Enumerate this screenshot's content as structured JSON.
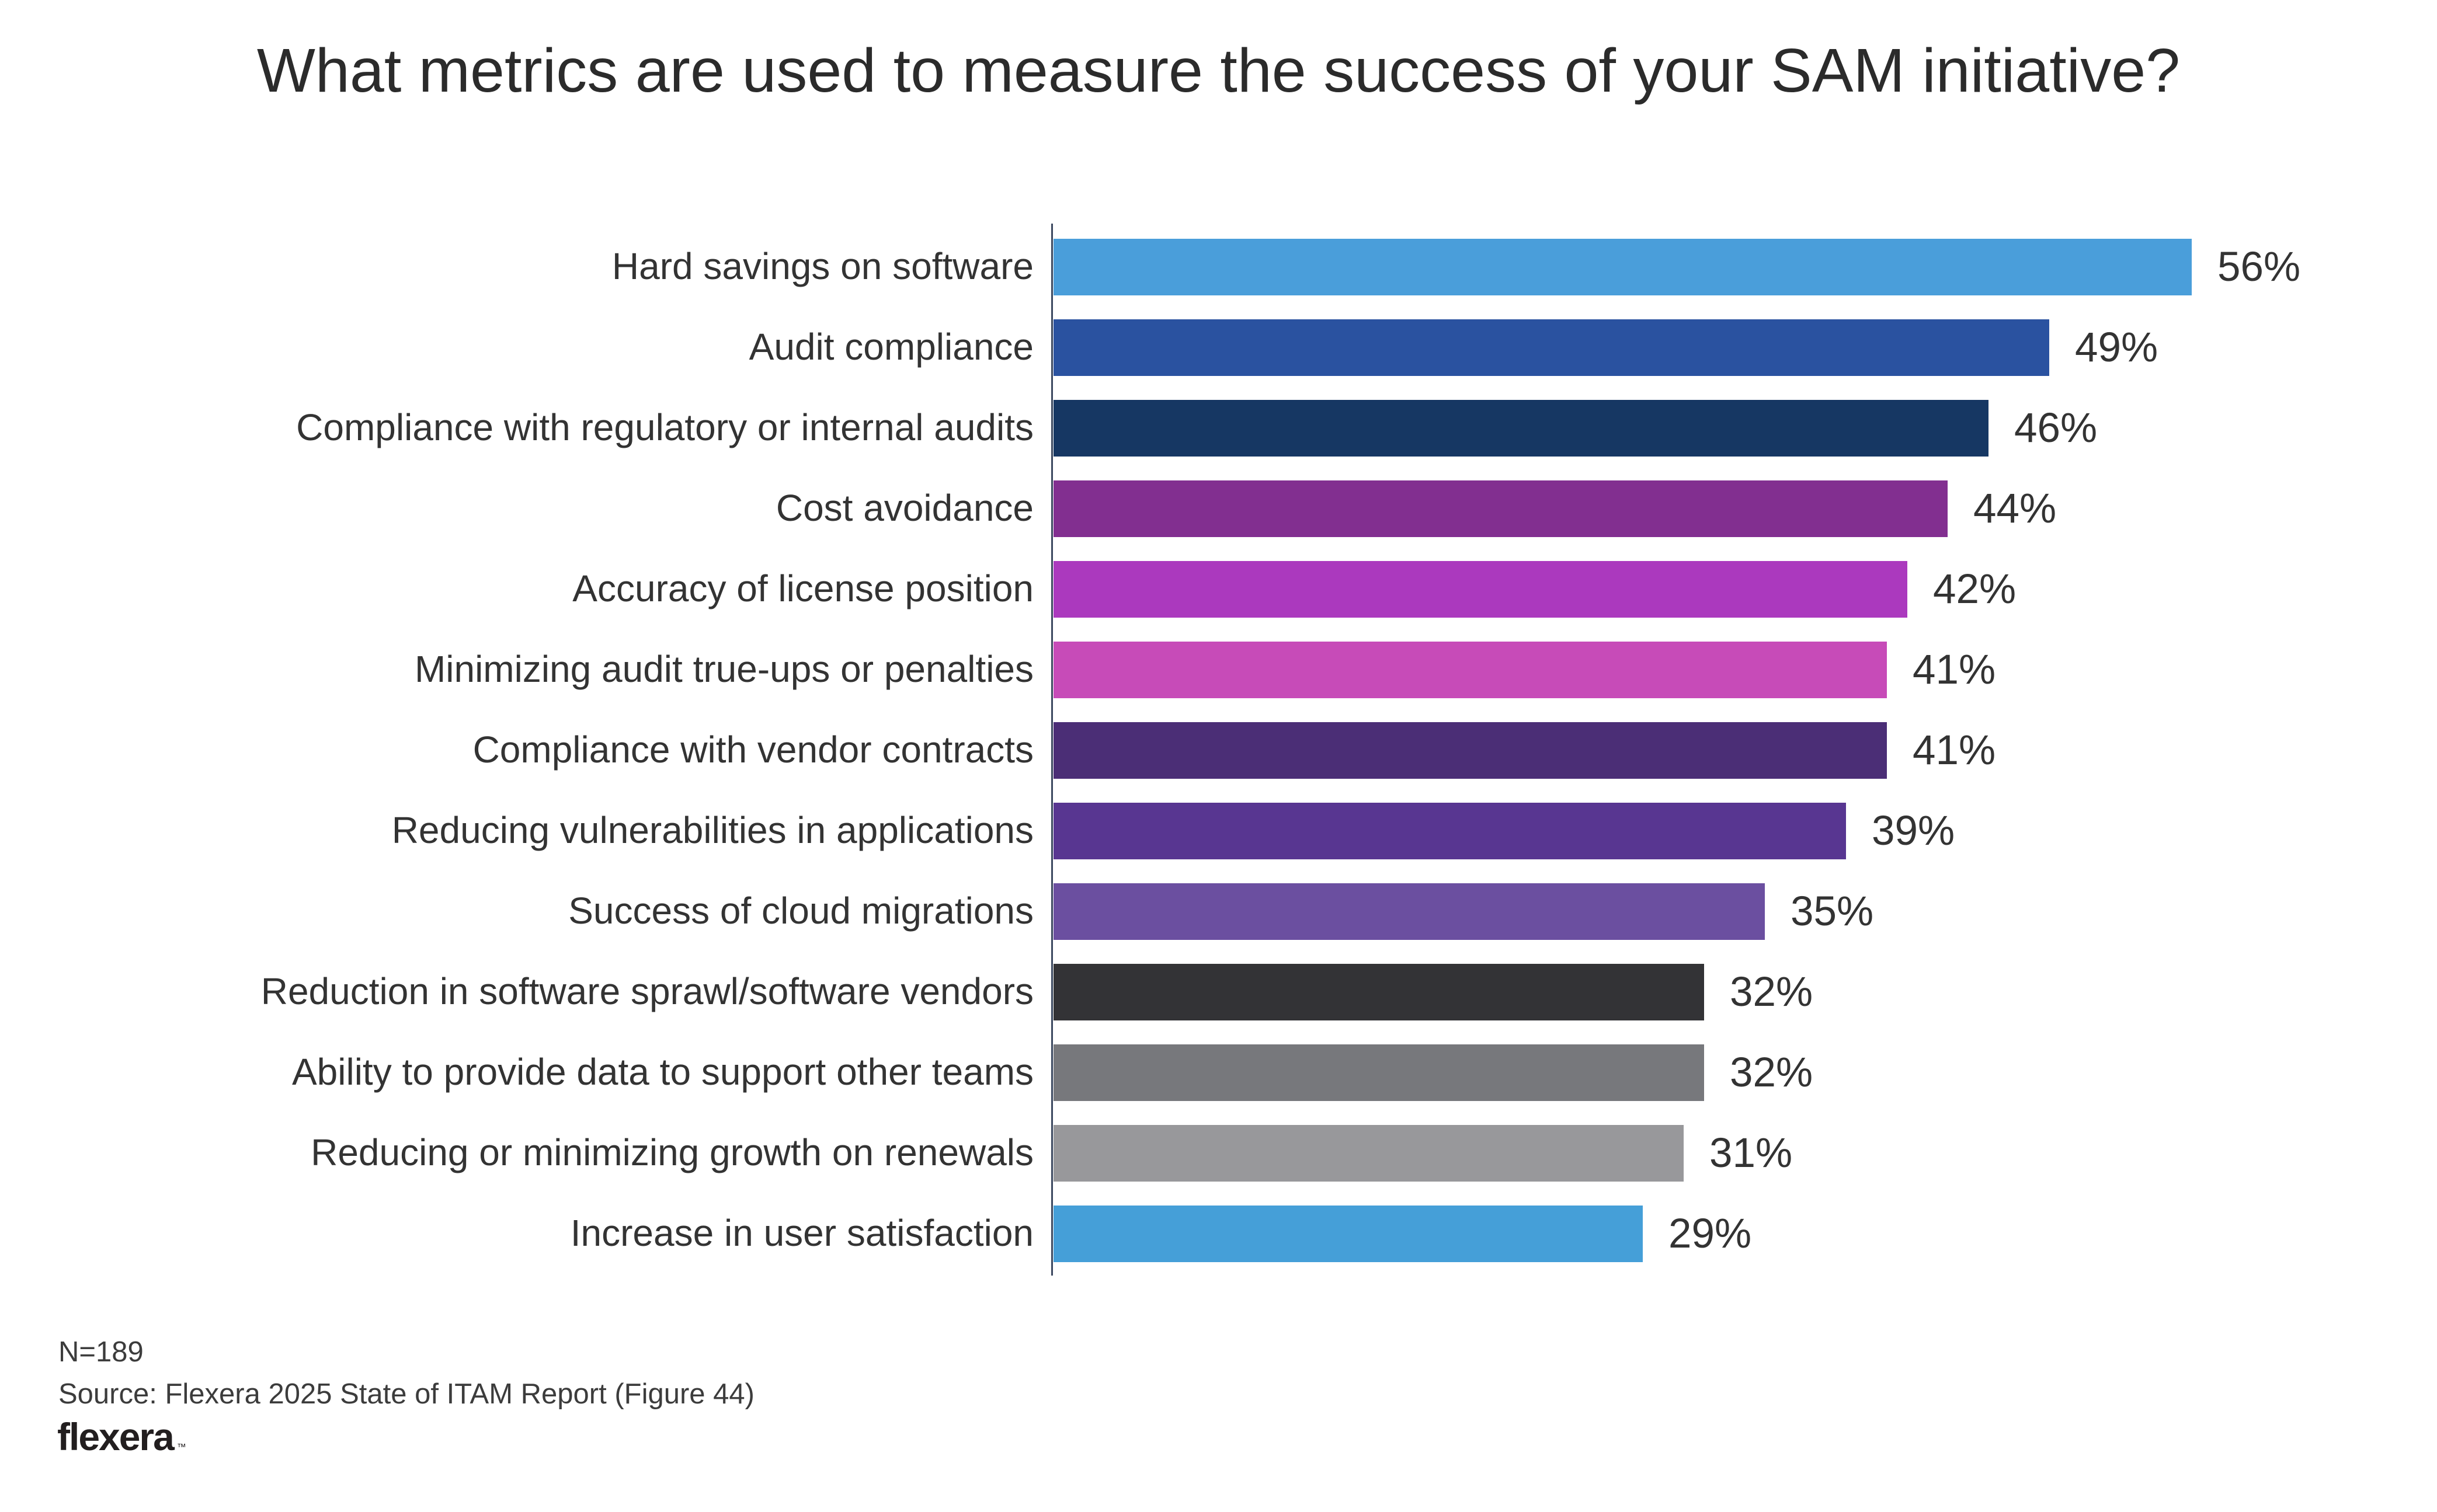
{
  "title": "What metrics are used to measure the success of your SAM initiative?",
  "chart_data": {
    "type": "bar",
    "orientation": "horizontal",
    "title": "What metrics are used to measure the success of your SAM initiative?",
    "categories": [
      "Hard savings on software",
      "Audit compliance",
      "Compliance with regulatory or internal audits",
      "Cost avoidance",
      "Accuracy of license position",
      "Minimizing audit true-ups or penalties",
      "Compliance with vendor contracts",
      "Reducing vulnerabilities in applications",
      "Success of cloud migrations",
      "Reduction in software sprawl/software vendors",
      "Ability to provide data to support other teams",
      "Reducing or minimizing growth on renewals",
      "Increase in user satisfaction"
    ],
    "values": [
      56,
      49,
      46,
      44,
      42,
      41,
      41,
      39,
      35,
      32,
      32,
      31,
      29
    ],
    "value_labels": [
      "56%",
      "49%",
      "46%",
      "44%",
      "42%",
      "41%",
      "41%",
      "39%",
      "35%",
      "32%",
      "32%",
      "31%",
      "29%"
    ],
    "bar_colors": [
      "#4A9EDA",
      "#2A52A0",
      "#163763",
      "#822F90",
      "#AB39BE",
      "#C74BB8",
      "#4B2E76",
      "#583691",
      "#6B4FA0",
      "#333336",
      "#77787C",
      "#98989B",
      "#459FD8"
    ],
    "xlim": [
      0,
      56
    ],
    "grid": false,
    "legend": false,
    "axis_line_color": "#3c4960",
    "category_label_color": "#333333",
    "value_label_color": "#333333"
  },
  "footer": {
    "sample_size": "N=189",
    "source": "Source: Flexera 2025 State of ITAM Report (Figure 44)",
    "logo_text": "flexera",
    "logo_tm": "™"
  },
  "colors": {
    "background": "#ffffff",
    "title_text": "#2b2b2b"
  }
}
